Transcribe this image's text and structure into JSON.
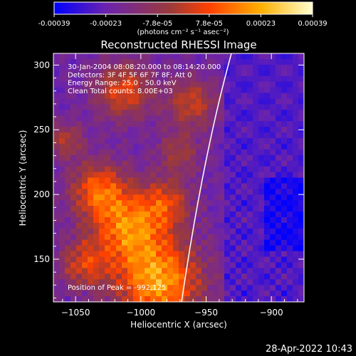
{
  "chart_data": {
    "type": "heatmap",
    "title": "Reconstructed RHESSI Image",
    "xlabel": "Heliocentric X (arcsec)",
    "ylabel": "Heliocentric Y (arcsec)",
    "xlim": [
      -1067,
      -875
    ],
    "ylim": [
      117,
      309
    ],
    "xticks": [
      -1050,
      -1000,
      -950,
      -900
    ],
    "yticks": [
      150,
      200,
      250,
      300
    ],
    "colorbar": {
      "ticks": [
        "-0.00039",
        "-0.00023",
        "-7.8e-05",
        "7.8e-05",
        "0.00023",
        "0.00039"
      ],
      "unit": "(photons cm⁻² s⁻¹ asec⁻²)",
      "range": [
        -0.00039,
        0.00039
      ],
      "colors": [
        "#0000ff",
        "#6b23ad",
        "#9b3a3a",
        "#ff4000",
        "#ffb000",
        "#ffffd0"
      ]
    },
    "annotations": [
      "30-Jan-2004 08:08:20.000 to 08:14:20.000",
      "Detectors: 3F 4F 5F 6F 7F 8F; Att 0",
      "Energy Range: 25.0 - 50.0 keV",
      "Clean    Total counts: 8.00E+03"
    ],
    "peak_label": "Position of Peak = -992,125",
    "peak": {
      "x": -992,
      "y": 125
    }
  },
  "footer": {
    "timestamp": "28-Apr-2022 10:43"
  }
}
